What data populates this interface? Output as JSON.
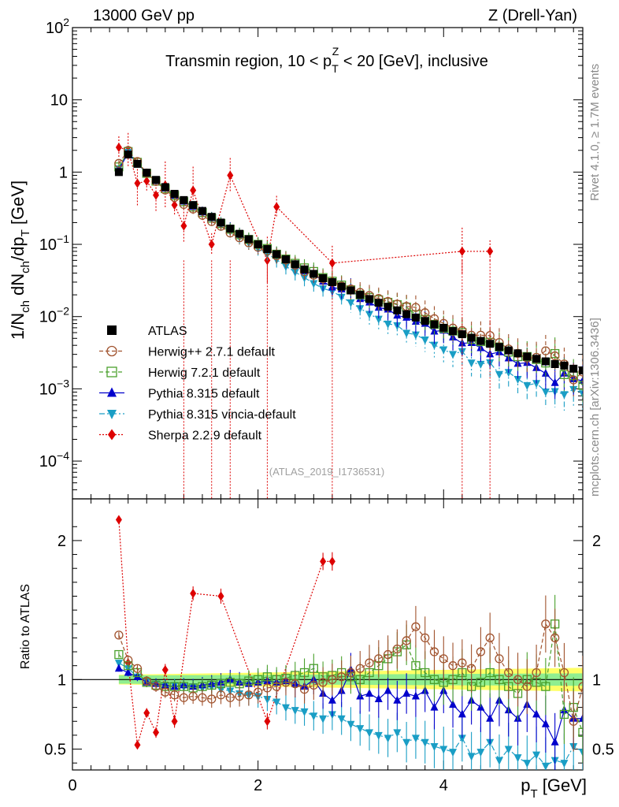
{
  "header": {
    "left": "13000 GeV pp",
    "right": "Z (Drell-Yan)"
  },
  "side": {
    "rivet": "Rivet 4.1.0, ≥ 1.7M events",
    "mcplots": "mcplots.cern.ch [arXiv:1306.3436]"
  },
  "chart_data": {
    "type": "scatter",
    "title": "Transmin region, 10 < p_T^Z < 20 [GeV], inclusive",
    "title_parts": {
      "pre": "Transmin region, 10 < p",
      "sub": "T",
      "sup": "Z",
      "post": " < 20 [GeV], inclusive"
    },
    "analysis": "(ATLAS_2019_I1736531)",
    "xlabel": {
      "main": "p",
      "sub": "T",
      "post": " [GeV]"
    },
    "ylabel": "1/N_ch dN_ch/dp_T [GeV]",
    "ratio_ylabel": "Ratio to ATLAS",
    "xlim": [
      0,
      5.5
    ],
    "ylim": [
      3e-05,
      100
    ],
    "yscale": "log",
    "ratio_ylim": [
      0.35,
      2.3
    ],
    "x_ticks": [
      "0",
      "2",
      "4"
    ],
    "y_ticks": [
      {
        "base": "10",
        "exp": "2",
        "value": 100
      },
      {
        "base": "10",
        "exp": "",
        "value": 10
      },
      {
        "base": "1",
        "exp": "",
        "value": 1
      },
      {
        "base": "10",
        "exp": "−1",
        "value": 0.1
      },
      {
        "base": "10",
        "exp": "−2",
        "value": 0.01
      },
      {
        "base": "10",
        "exp": "−3",
        "value": 0.001
      },
      {
        "base": "10",
        "exp": "−4",
        "value": 0.0001
      }
    ],
    "ratio_ticks": [
      "0.5",
      "1",
      "2"
    ],
    "x": [
      0.5,
      0.6,
      0.7,
      0.8,
      0.9,
      1.0,
      1.1,
      1.2,
      1.3,
      1.4,
      1.5,
      1.6,
      1.7,
      1.8,
      1.9,
      2.0,
      2.1,
      2.2,
      2.3,
      2.4,
      2.5,
      2.6,
      2.7,
      2.8,
      2.9,
      3.0,
      3.1,
      3.2,
      3.3,
      3.4,
      3.5,
      3.6,
      3.7,
      3.8,
      3.9,
      4.0,
      4.1,
      4.2,
      4.3,
      4.4,
      4.5,
      4.6,
      4.7,
      4.8,
      4.9,
      5.0,
      5.1,
      5.2,
      5.3,
      5.4,
      5.5
    ],
    "series": [
      {
        "name": "ATLAS",
        "color": "#000000",
        "marker": "square-filled",
        "values": [
          1.0,
          1.75,
          1.3,
          0.98,
          0.78,
          0.62,
          0.5,
          0.41,
          0.35,
          0.29,
          0.24,
          0.2,
          0.165,
          0.14,
          0.118,
          0.1,
          0.086,
          0.073,
          0.062,
          0.053,
          0.045,
          0.039,
          0.034,
          0.03,
          0.026,
          0.023,
          0.02,
          0.0175,
          0.0155,
          0.0137,
          0.0122,
          0.0108,
          0.0097,
          0.0087,
          0.0078,
          0.007,
          0.0063,
          0.0057,
          0.0051,
          0.0046,
          0.0042,
          0.0038,
          0.0034,
          0.0031,
          0.0028,
          0.0026,
          0.0024,
          0.0022,
          0.0021,
          0.0019,
          0.0018
        ]
      },
      {
        "name": "Herwig++ 2.7.1 default",
        "color": "#a0522d",
        "marker": "circle-open",
        "ratio": [
          1.32,
          1.14,
          1.08,
          0.99,
          0.95,
          0.91,
          0.89,
          0.87,
          0.88,
          0.87,
          0.86,
          0.89,
          0.87,
          0.88,
          0.89,
          0.91,
          0.94,
          0.95,
          0.98,
          0.97,
          0.93,
          0.96,
          0.98,
          1.0,
          1.02,
          1.05,
          1.08,
          1.12,
          1.15,
          1.18,
          1.22,
          1.28,
          1.38,
          1.3,
          1.2,
          1.15,
          1.1,
          1.12,
          1.08,
          1.2,
          1.3,
          1.15,
          1.05,
          1.0,
          0.95,
          1.05,
          1.4,
          1.3,
          1.05,
          0.7,
          0.95
        ]
      },
      {
        "name": "Herwig 7.2.1 default",
        "color": "#4aa02c",
        "marker": "square-open",
        "ratio": [
          1.18,
          1.1,
          1.05,
          0.98,
          0.96,
          0.95,
          0.95,
          0.95,
          0.94,
          0.95,
          0.96,
          0.97,
          0.98,
          0.97,
          0.99,
          1.0,
          1.02,
          1.0,
          1.01,
          1.03,
          1.05,
          1.08,
          1.02,
          1.03,
          1.05,
          1.02,
          1.0,
          1.05,
          1.1,
          1.15,
          1.2,
          1.25,
          1.1,
          1.05,
          1.0,
          0.98,
          1.0,
          1.05,
          0.95,
          0.98,
          1.05,
          1.0,
          0.95,
          0.9,
          1.0,
          0.98,
          0.95,
          1.4,
          0.75,
          0.8,
          0.62
        ]
      },
      {
        "name": "Pythia 8.315 default",
        "color": "#0000cc",
        "marker": "triangle-up-filled",
        "ratio": [
          1.08,
          1.05,
          1.02,
          0.98,
          0.97,
          0.96,
          0.95,
          0.96,
          0.95,
          0.96,
          0.97,
          0.98,
          1.0,
          0.98,
          0.97,
          0.98,
          0.99,
          0.98,
          0.99,
          0.97,
          0.95,
          1.0,
          0.9,
          0.85,
          0.92,
          1.07,
          0.88,
          0.9,
          0.86,
          0.92,
          0.85,
          0.9,
          0.88,
          0.92,
          0.8,
          0.92,
          0.82,
          0.75,
          0.85,
          0.8,
          0.72,
          0.85,
          0.78,
          0.72,
          0.82,
          0.75,
          0.68,
          0.55,
          0.78,
          0.72,
          0.72
        ]
      },
      {
        "name": "Pythia 8.315 vincia-default",
        "color": "#1a9ec5",
        "marker": "triangle-down-filled",
        "ratio": [
          1.12,
          1.08,
          1.02,
          0.99,
          0.97,
          0.96,
          0.96,
          0.95,
          0.95,
          0.94,
          0.95,
          0.93,
          0.92,
          0.9,
          0.89,
          0.88,
          0.86,
          0.84,
          0.8,
          0.78,
          0.77,
          0.74,
          0.72,
          0.75,
          0.72,
          0.68,
          0.65,
          0.62,
          0.6,
          0.58,
          0.62,
          0.55,
          0.58,
          0.55,
          0.52,
          0.5,
          0.48,
          0.58,
          0.45,
          0.48,
          0.55,
          0.42,
          0.5,
          0.44,
          0.4,
          0.46,
          0.38,
          0.42,
          0.4,
          0.52,
          0.48
        ]
      },
      {
        "name": "Sherpa 2.2.9 default",
        "color": "#dd0000",
        "marker": "diamond-filled",
        "ratio": [
          2.15,
          1.12,
          0.53,
          0.76,
          0.62,
          1.07,
          0.7,
          null,
          1.62,
          null,
          null,
          1.6,
          null,
          null,
          null,
          null,
          0.7,
          null,
          null,
          null,
          null,
          null,
          1.85,
          1.85,
          null,
          null,
          null,
          null,
          null,
          null,
          null,
          null,
          null,
          null,
          null,
          null,
          null,
          null,
          null,
          null,
          null,
          null,
          null,
          null,
          null,
          null,
          null,
          null,
          null,
          null,
          null
        ]
      },
      {
        "name": "Sherpa 2.2.9 default (main panel)",
        "points": [
          [
            0.5,
            2.2
          ],
          [
            0.6,
            2.0
          ],
          [
            0.7,
            0.7
          ],
          [
            0.8,
            0.75
          ],
          [
            0.9,
            0.48
          ],
          [
            1.0,
            0.66
          ],
          [
            1.1,
            0.35
          ],
          [
            1.2,
            0.18
          ],
          [
            1.3,
            0.56
          ],
          [
            1.5,
            0.1
          ],
          [
            1.7,
            0.9
          ],
          [
            2.1,
            0.06
          ],
          [
            2.2,
            0.33
          ],
          [
            2.8,
            0.055
          ],
          [
            4.2,
            0.08
          ],
          [
            4.5,
            0.08
          ]
        ]
      }
    ],
    "legend": [
      "ATLAS",
      "Herwig++ 2.7.1 default",
      "Herwig 7.2.1 default",
      "Pythia 8.315 default",
      "Pythia 8.315 vincia-default",
      "Sherpa 2.2.9 default"
    ],
    "legend_location": "lower-left",
    "band_colors": {
      "inner": "#90ee90",
      "outer": "#ffff66"
    }
  }
}
